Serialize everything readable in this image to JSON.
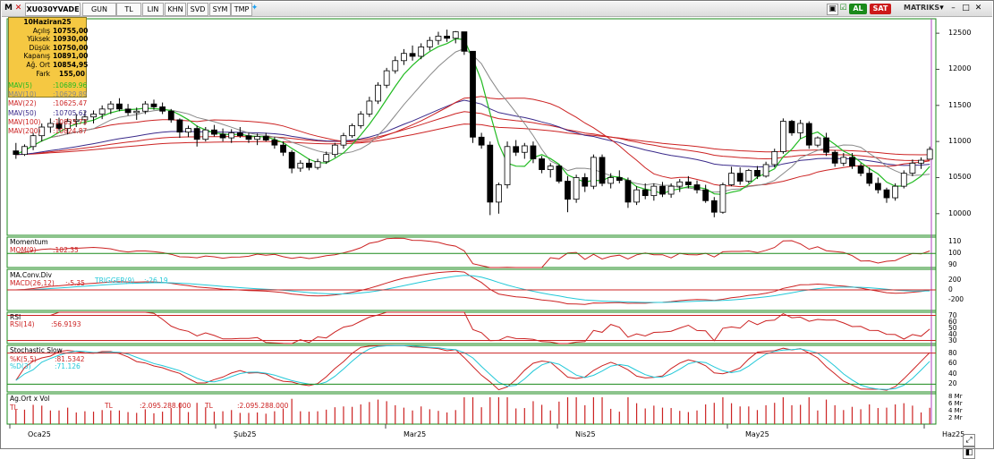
{
  "toolbar": {
    "symbol": "XU030YVADE",
    "buttons": [
      "GUN",
      "TL",
      "LIN",
      "KHN",
      "SVD",
      "SYM",
      "TMP"
    ],
    "al": "AL",
    "sat": "SAT",
    "brand": "MATRIKS"
  },
  "info_box": {
    "date": "10Haziran25",
    "rows": [
      {
        "k": "Açılış",
        "v": "10755,00"
      },
      {
        "k": "Yüksek",
        "v": "10930,00"
      },
      {
        "k": "Düşük",
        "v": "10750,00"
      },
      {
        "k": "Kapanış",
        "v": "10891,00"
      },
      {
        "k": "Ağ. Ort",
        "v": "10854,95"
      },
      {
        "k": "Fark",
        "v": "155,00"
      }
    ]
  },
  "mav_legend": [
    {
      "label": "MAV(5)",
      "value": ":10689.96",
      "color": "#22bb22"
    },
    {
      "label": "MAV(10)",
      "value": ":10629.89",
      "color": "#888888"
    },
    {
      "label": "MAV(22)",
      "value": ":10625.47",
      "color": "#cc2222"
    },
    {
      "label": "MAV(50)",
      "value": ":10705.62",
      "color": "#3a2a8a"
    },
    {
      "label": "MAV(100)",
      "value": ":10833.73",
      "color": "#cc2222"
    },
    {
      "label": "MAV(200)",
      "value": ":10824.87",
      "color": "#cc2222"
    }
  ],
  "panels": {
    "momentum": {
      "title": "Momentum",
      "label": "MOM(9)",
      "value": ":102.35",
      "ticks": [
        "110",
        "100",
        "90"
      ]
    },
    "macd": {
      "title": "MA.Conv.Div",
      "label": "MACD(26,12)",
      "value": ":-5.35",
      "trigger_label": "TRIGGER(9)",
      "trigger_value": ":-26.19",
      "ticks": [
        "200",
        "0",
        "-200"
      ]
    },
    "rsi": {
      "title": "RSI",
      "label": "RSI(14)",
      "value": ":56.9193",
      "ticks": [
        "70",
        "60",
        "50",
        "40",
        "30"
      ]
    },
    "stoch": {
      "title": "Stochastic Slow",
      "k_label": "%K(5,5)",
      "k_value": ":81.5342",
      "d_label": "%D(3)",
      "d_value": ":71.126",
      "ticks": [
        "80",
        "60",
        "40",
        "20"
      ]
    },
    "volume": {
      "title": "Ag.Ort x Vol",
      "a": "TL",
      "b": "TL",
      "v1": ":2.095.288.000",
      "c": "TL",
      "v2": ":2.095.288.000",
      "ticks": [
        "8 Mr",
        "6 Mr",
        "4 Mr",
        "2 Mr"
      ]
    }
  },
  "x_axis": [
    "Oca25",
    "Şub25",
    "Mar25",
    "Nis25",
    "May25",
    "Haz25"
  ],
  "chart_data": {
    "type": "candlestick",
    "y_ticks": [
      10000,
      10500,
      11000,
      11500,
      12000,
      12500
    ],
    "ylim": [
      9700,
      12700
    ],
    "candles": [
      [
        10870,
        10980,
        10760,
        10820
      ],
      [
        10820,
        10960,
        10800,
        10930
      ],
      [
        10930,
        11120,
        10880,
        11080
      ],
      [
        11080,
        11250,
        11000,
        11200
      ],
      [
        11200,
        11320,
        11120,
        11250
      ],
      [
        11250,
        11330,
        11150,
        11180
      ],
      [
        11180,
        11320,
        11100,
        11280
      ],
      [
        11280,
        11380,
        11200,
        11300
      ],
      [
        11300,
        11420,
        11230,
        11340
      ],
      [
        11340,
        11430,
        11250,
        11380
      ],
      [
        11380,
        11500,
        11310,
        11450
      ],
      [
        11450,
        11560,
        11380,
        11520
      ],
      [
        11520,
        11600,
        11420,
        11450
      ],
      [
        11450,
        11520,
        11360,
        11400
      ],
      [
        11400,
        11470,
        11300,
        11420
      ],
      [
        11420,
        11560,
        11380,
        11520
      ],
      [
        11520,
        11580,
        11440,
        11480
      ],
      [
        11480,
        11540,
        11380,
        11420
      ],
      [
        11420,
        11450,
        11260,
        11300
      ],
      [
        11300,
        11320,
        11050,
        11130
      ],
      [
        11130,
        11220,
        11060,
        11180
      ],
      [
        11180,
        11220,
        10930,
        11030
      ],
      [
        11030,
        11200,
        11000,
        11160
      ],
      [
        11160,
        11230,
        11070,
        11100
      ],
      [
        11100,
        11180,
        11000,
        11050
      ],
      [
        11050,
        11170,
        10980,
        11120
      ],
      [
        11120,
        11200,
        11050,
        11080
      ],
      [
        11080,
        11120,
        10980,
        11030
      ],
      [
        11030,
        11110,
        10950,
        11070
      ],
      [
        11070,
        11120,
        11000,
        11020
      ],
      [
        11020,
        11060,
        10900,
        10950
      ],
      [
        10950,
        11000,
        10800,
        10850
      ],
      [
        10850,
        10880,
        10560,
        10630
      ],
      [
        10630,
        10740,
        10580,
        10700
      ],
      [
        10700,
        10760,
        10600,
        10640
      ],
      [
        10640,
        10760,
        10610,
        10720
      ],
      [
        10720,
        10860,
        10690,
        10820
      ],
      [
        10820,
        10980,
        10780,
        10950
      ],
      [
        10950,
        11120,
        10900,
        11080
      ],
      [
        11080,
        11250,
        11050,
        11220
      ],
      [
        11220,
        11420,
        11180,
        11380
      ],
      [
        11380,
        11620,
        11340,
        11560
      ],
      [
        11560,
        11820,
        11520,
        11780
      ],
      [
        11780,
        12020,
        11740,
        11980
      ],
      [
        11980,
        12180,
        11940,
        12120
      ],
      [
        12120,
        12280,
        12060,
        12220
      ],
      [
        12220,
        12330,
        12120,
        12180
      ],
      [
        12180,
        12360,
        12140,
        12310
      ],
      [
        12310,
        12450,
        12260,
        12400
      ],
      [
        12400,
        12520,
        12340,
        12460
      ],
      [
        12460,
        12550,
        12380,
        12430
      ],
      [
        12430,
        12530,
        12360,
        12520
      ],
      [
        12520,
        12520,
        12200,
        12250
      ],
      [
        12250,
        12250,
        10980,
        11060
      ],
      [
        11060,
        11120,
        10900,
        10950
      ],
      [
        10950,
        11000,
        9980,
        10160
      ],
      [
        10160,
        10430,
        10000,
        10400
      ],
      [
        10400,
        11000,
        10350,
        10930
      ],
      [
        10930,
        11020,
        10800,
        10850
      ],
      [
        10850,
        10980,
        10760,
        10940
      ],
      [
        10940,
        11000,
        10700,
        10760
      ],
      [
        10760,
        10800,
        10560,
        10610
      ],
      [
        10610,
        10700,
        10500,
        10660
      ],
      [
        10660,
        10680,
        10420,
        10450
      ],
      [
        10450,
        10520,
        10020,
        10200
      ],
      [
        10200,
        10540,
        10150,
        10500
      ],
      [
        10500,
        10560,
        10300,
        10380
      ],
      [
        10380,
        10820,
        10340,
        10780
      ],
      [
        10780,
        10820,
        10380,
        10420
      ],
      [
        10420,
        10560,
        10350,
        10500
      ],
      [
        10500,
        10600,
        10420,
        10460
      ],
      [
        10460,
        10500,
        10080,
        10160
      ],
      [
        10160,
        10380,
        10120,
        10330
      ],
      [
        10330,
        10420,
        10200,
        10250
      ],
      [
        10250,
        10420,
        10180,
        10380
      ],
      [
        10380,
        10440,
        10230,
        10270
      ],
      [
        10270,
        10420,
        10220,
        10380
      ],
      [
        10380,
        10480,
        10300,
        10440
      ],
      [
        10440,
        10520,
        10350,
        10400
      ],
      [
        10400,
        10460,
        10280,
        10330
      ],
      [
        10330,
        10400,
        10150,
        10180
      ],
      [
        10180,
        10230,
        9950,
        10020
      ],
      [
        10020,
        10430,
        10000,
        10400
      ],
      [
        10400,
        10650,
        10380,
        10560
      ],
      [
        10560,
        10640,
        10400,
        10450
      ],
      [
        10450,
        10620,
        10420,
        10600
      ],
      [
        10600,
        10660,
        10480,
        10520
      ],
      [
        10520,
        10720,
        10500,
        10680
      ],
      [
        10680,
        10900,
        10640,
        10860
      ],
      [
        10860,
        11320,
        10830,
        11280
      ],
      [
        11280,
        11300,
        11080,
        11120
      ],
      [
        11120,
        11300,
        11040,
        11250
      ],
      [
        11250,
        11280,
        10900,
        10950
      ],
      [
        10950,
        11070,
        10920,
        11050
      ],
      [
        11050,
        11120,
        10800,
        10850
      ],
      [
        10850,
        10880,
        10650,
        10700
      ],
      [
        10700,
        10840,
        10660,
        10780
      ],
      [
        10780,
        10840,
        10620,
        10660
      ],
      [
        10660,
        10700,
        10520,
        10560
      ],
      [
        10560,
        10640,
        10380,
        10420
      ],
      [
        10420,
        10500,
        10280,
        10330
      ],
      [
        10330,
        10360,
        10150,
        10220
      ],
      [
        10220,
        10420,
        10180,
        10380
      ],
      [
        10380,
        10600,
        10350,
        10560
      ],
      [
        10560,
        10750,
        10520,
        10700
      ],
      [
        10700,
        10780,
        10620,
        10740
      ],
      [
        10755,
        10930,
        10750,
        10891
      ]
    ]
  }
}
